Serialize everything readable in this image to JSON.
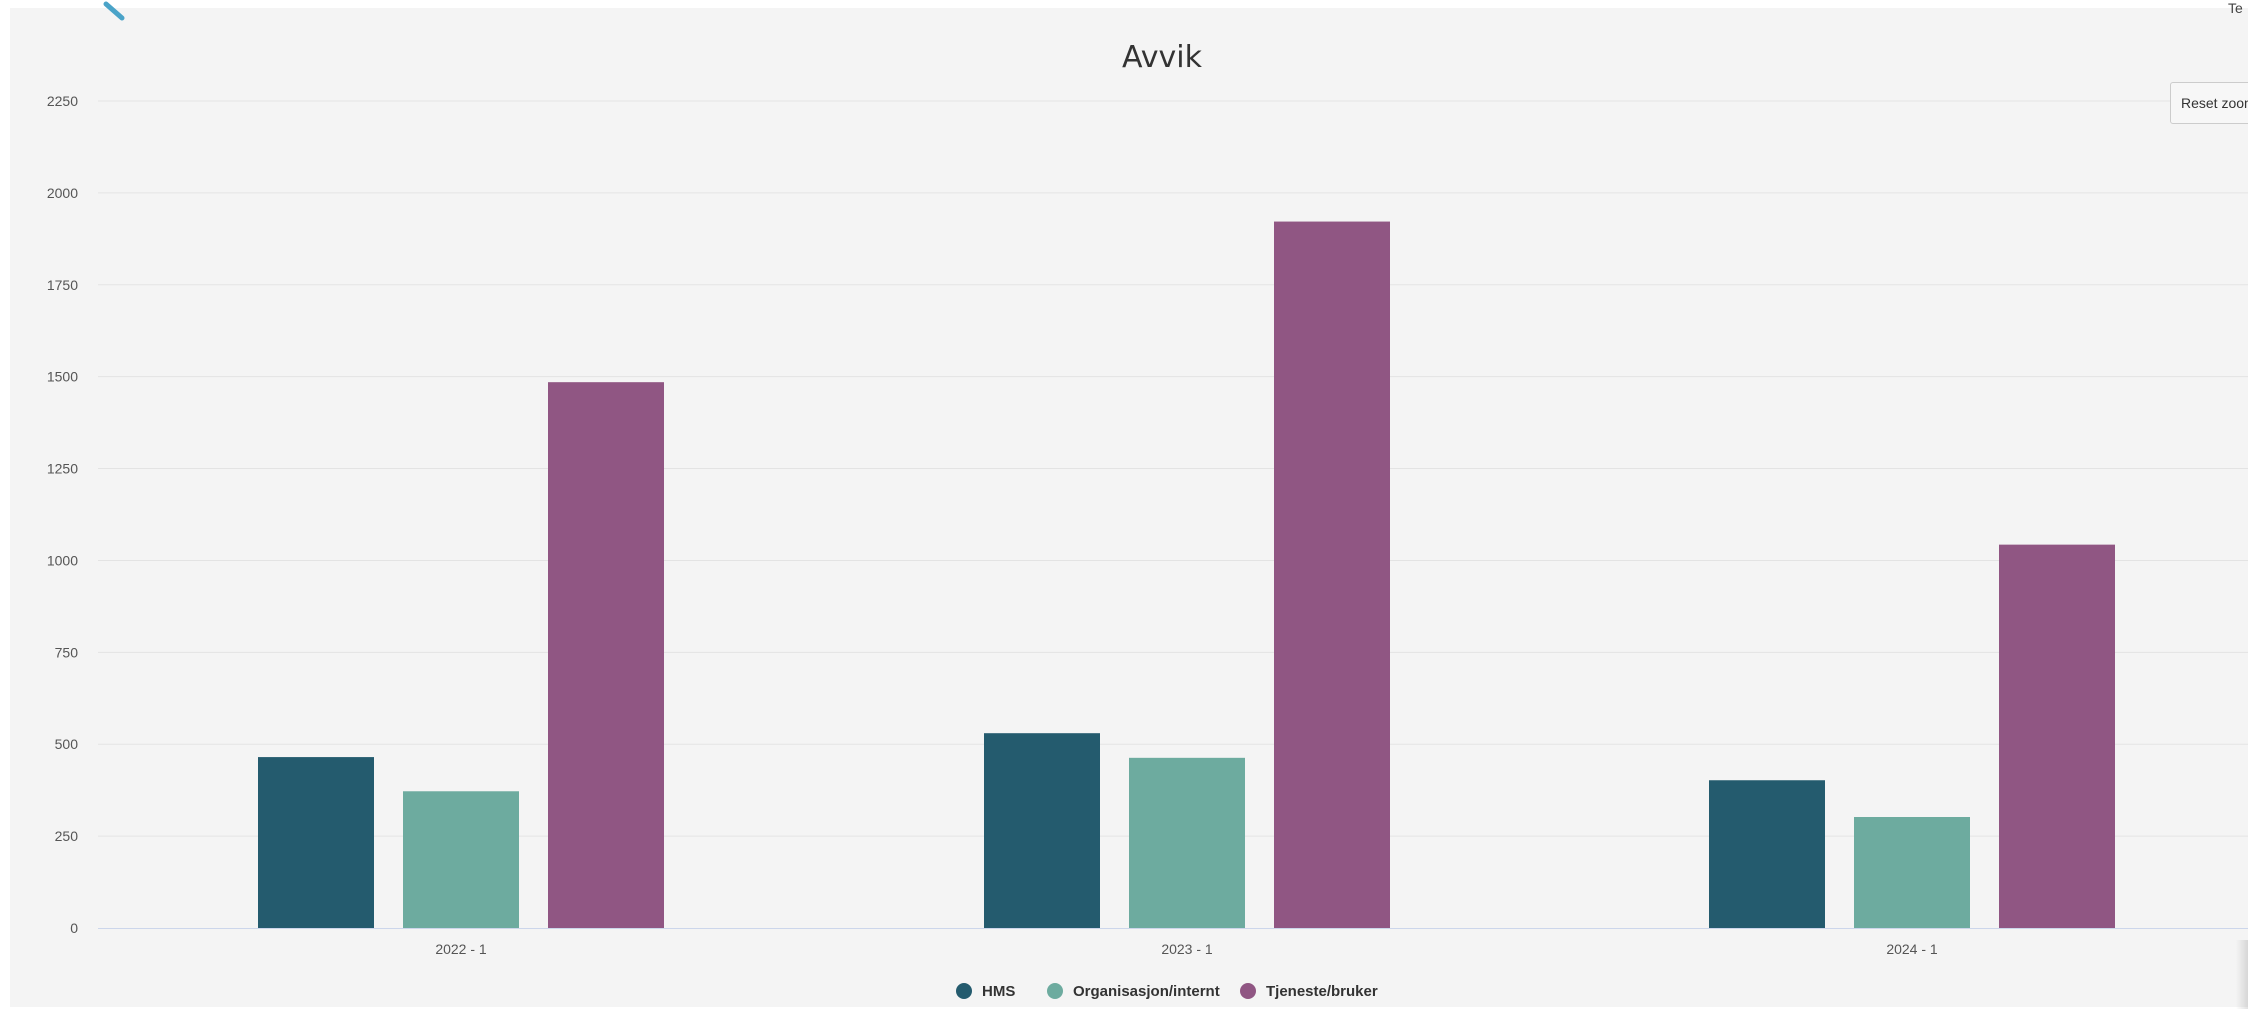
{
  "colors": {
    "background": "#f4f4f4",
    "grid": "#e3e3e3",
    "axis": "#ccd6eb",
    "accent": "#4aa3c8"
  },
  "toolbar": {
    "reset_zoom_label": "Reset zoom",
    "top_right_fragment": "Te"
  },
  "chart_data": {
    "type": "bar",
    "title": "Avvik",
    "xlabel": "",
    "ylabel": "",
    "categories": [
      "2022 - 1",
      "2023 - 1",
      "2024 - 1"
    ],
    "series": [
      {
        "name": "HMS",
        "color": "#245b6e",
        "values": [
          465,
          530,
          402
        ]
      },
      {
        "name": "Organisasjon/internt",
        "color": "#6dab9f",
        "values": [
          372,
          463,
          302
        ]
      },
      {
        "name": "Tjeneste/bruker",
        "color": "#905683",
        "values": [
          1485,
          1922,
          1043
        ]
      }
    ],
    "ylim": [
      0,
      2250
    ],
    "yticks": [
      0,
      250,
      500,
      750,
      1000,
      1250,
      1500,
      1750,
      2000,
      2250
    ],
    "ytick_labels": [
      "0",
      "250",
      "500",
      "750",
      "1000",
      "1250",
      "1500",
      "1750",
      "2000",
      "2250"
    ],
    "grid": true,
    "legend_position": "bottom-center"
  }
}
